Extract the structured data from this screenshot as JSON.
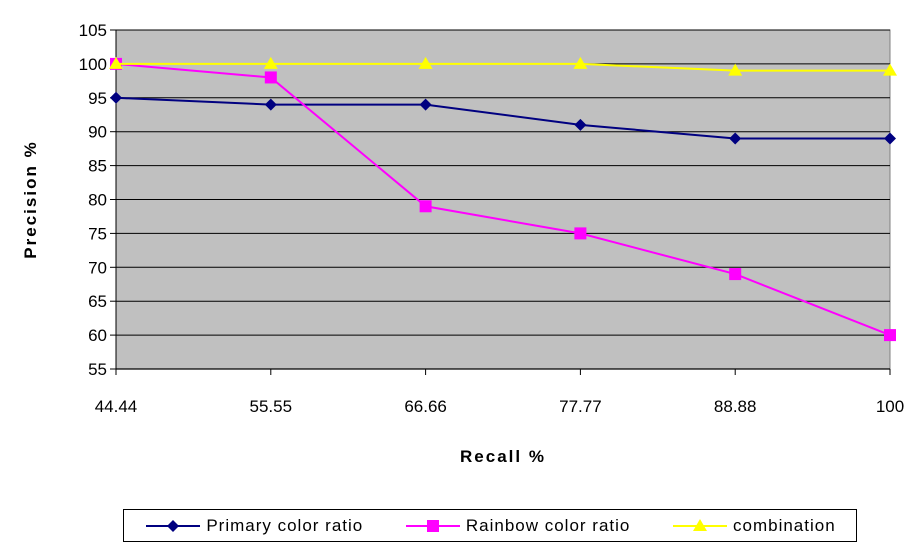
{
  "chart_data": {
    "type": "line",
    "xlabel": "Recall %",
    "ylabel": "Precision %",
    "categories": [
      "44.44",
      "55.55",
      "66.66",
      "77.77",
      "88.88",
      "100"
    ],
    "ylim": [
      55,
      105
    ],
    "yticks": [
      55,
      60,
      65,
      70,
      75,
      80,
      85,
      90,
      95,
      100,
      105
    ],
    "grid": true,
    "plot_background": "#c0c0c0",
    "legend_position": "bottom",
    "series": [
      {
        "name": "Primary color ratio",
        "color": "#000080",
        "marker": "diamond",
        "values": [
          95,
          94,
          94,
          91,
          89,
          89
        ]
      },
      {
        "name": "Rainbow color ratio",
        "color": "#ff00ff",
        "marker": "square",
        "values": [
          100,
          98,
          79,
          75,
          69,
          60
        ]
      },
      {
        "name": "combination",
        "color": "#ffff00",
        "marker": "triangle",
        "values": [
          100,
          100,
          100,
          100,
          99,
          99
        ]
      }
    ]
  }
}
